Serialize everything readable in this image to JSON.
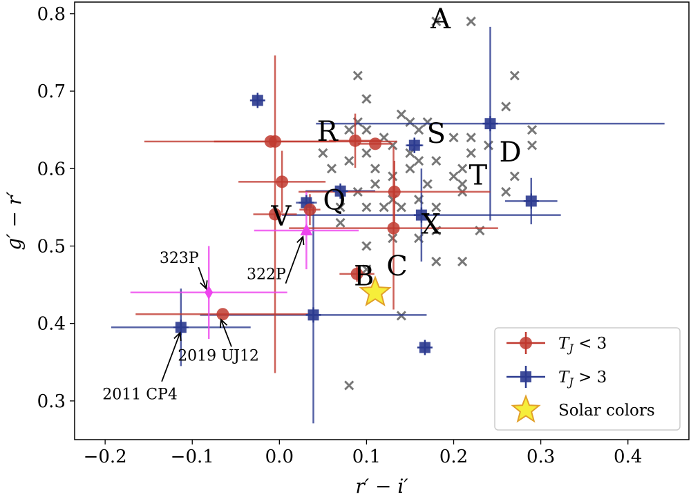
{
  "chart_data": {
    "type": "scatter",
    "xlabel": "r′ − i′",
    "ylabel": "g′ − r′",
    "xlim": [
      -0.235,
      0.47
    ],
    "ylim": [
      0.25,
      0.815
    ],
    "xticks": [
      -0.2,
      -0.1,
      0.0,
      0.1,
      0.2,
      0.3,
      0.4
    ],
    "xtick_labels": [
      "−0.2",
      "−0.1",
      "0.0",
      "0.1",
      "0.2",
      "0.3",
      "0.4"
    ],
    "yticks": [
      0.3,
      0.4,
      0.5,
      0.6,
      0.7,
      0.8
    ],
    "ytick_labels": [
      "0.3",
      "0.4",
      "0.5",
      "0.6",
      "0.7",
      "0.8"
    ],
    "grid": false,
    "legend_position": "bottom-right",
    "series": [
      {
        "name": "T_J < 3",
        "label_main": "T",
        "label_sub": "J",
        "label_rel": " < 3",
        "marker": "circle",
        "color": "#c0392f",
        "points": [
          {
            "x": -0.01,
            "y": 0.635,
            "xerr": 0.145,
            "yerr": 0.0
          },
          {
            "x": -0.005,
            "y": 0.635,
            "xerr": 0.07,
            "yerr": 0.0
          },
          {
            "x": 0.003,
            "y": 0.583,
            "xerr": 0.05,
            "yerr": 0.04
          },
          {
            "x": -0.005,
            "y": 0.541,
            "xerr": 0.025,
            "yerr": 0.205
          },
          {
            "x": 0.035,
            "y": 0.547,
            "xerr": 0.012,
            "yerr": 0.02
          },
          {
            "x": 0.087,
            "y": 0.636,
            "xerr": 0.03,
            "yerr": 0.035
          },
          {
            "x": 0.11,
            "y": 0.632,
            "xerr": 0.02,
            "yerr": 0.0
          },
          {
            "x": 0.132,
            "y": 0.57,
            "xerr": 0.11,
            "yerr": 0.04
          },
          {
            "x": 0.131,
            "y": 0.523,
            "xerr": 0.12,
            "yerr": 0.105
          },
          {
            "x": 0.089,
            "y": 0.464,
            "xerr": 0.02,
            "yerr": 0.01
          },
          {
            "x": -0.065,
            "y": 0.412,
            "xerr": 0.1,
            "yerr": 0.0
          }
        ]
      },
      {
        "name": "T_J > 3",
        "label_main": "T",
        "label_sub": "J",
        "label_rel": " > 3",
        "marker": "square",
        "color": "#2b3a8f",
        "points": [
          {
            "x": -0.025,
            "y": 0.688,
            "xerr": 0.0,
            "yerr": 0.0
          },
          {
            "x": 0.242,
            "y": 0.658,
            "xerr": 0.2,
            "yerr": 0.125
          },
          {
            "x": 0.155,
            "y": 0.63,
            "xerr": 0.01,
            "yerr": 0.01
          },
          {
            "x": 0.07,
            "y": 0.571,
            "xerr": 0.04,
            "yerr": 0.0
          },
          {
            "x": 0.289,
            "y": 0.558,
            "xerr": 0.03,
            "yerr": 0.03
          },
          {
            "x": 0.163,
            "y": 0.54,
            "xerr": 0.16,
            "yerr": 0.06
          },
          {
            "x": 0.031,
            "y": 0.556,
            "xerr": 0.012,
            "yerr": 0.0
          },
          {
            "x": 0.039,
            "y": 0.411,
            "xerr": 0.13,
            "yerr": 0.14
          },
          {
            "x": -0.113,
            "y": 0.395,
            "xerr": 0.08,
            "yerr": 0.05
          },
          {
            "x": 0.167,
            "y": 0.369,
            "xerr": 0.0,
            "yerr": 0.0
          }
        ]
      },
      {
        "name": "Solar colors",
        "marker": "star",
        "color": "#f6ee3a",
        "stroke": "#e1a02a",
        "points": [
          {
            "x": 0.11,
            "y": 0.44
          }
        ]
      }
    ],
    "magenta_points": [
      {
        "label": "323P",
        "x": -0.081,
        "y": 0.44,
        "xerr": 0.09,
        "yerr": 0.06,
        "marker": "diamond",
        "color": "#ee44ee",
        "text_x": -0.115,
        "text_y": 0.478,
        "tip_x": -0.084,
        "tip_y": 0.445
      },
      {
        "label": "322P",
        "x": 0.031,
        "y": 0.52,
        "xerr": 0.06,
        "yerr": 0.05,
        "marker": "triangle",
        "color": "#ee44ee",
        "text_x": -0.015,
        "text_y": 0.457,
        "tip_x": 0.027,
        "tip_y": 0.512
      }
    ],
    "annotations": [
      {
        "label": "2011 CP4",
        "text_x": -0.16,
        "text_y": 0.302,
        "tip_x": -0.114,
        "tip_y": 0.388,
        "from_x": -0.135,
        "from_y": 0.325
      },
      {
        "label": "2019 UJ12",
        "text_x": -0.07,
        "text_y": 0.352,
        "tip_x": -0.067,
        "tip_y": 0.405,
        "from_x": -0.055,
        "from_y": 0.37
      }
    ],
    "taxonomy_labels": [
      {
        "label": "A",
        "x": 0.185,
        "y": 0.79
      },
      {
        "label": "R",
        "x": 0.055,
        "y": 0.645
      },
      {
        "label": "S",
        "x": 0.18,
        "y": 0.642
      },
      {
        "label": "D",
        "x": 0.265,
        "y": 0.618
      },
      {
        "label": "T",
        "x": 0.228,
        "y": 0.588
      },
      {
        "label": "Q",
        "x": 0.063,
        "y": 0.556
      },
      {
        "label": "V",
        "x": 0.002,
        "y": 0.535
      },
      {
        "label": "X",
        "x": 0.174,
        "y": 0.525
      },
      {
        "label": "C",
        "x": 0.135,
        "y": 0.471
      },
      {
        "label": "B",
        "x": 0.097,
        "y": 0.458
      }
    ],
    "reference_points": [
      {
        "x": 0.22,
        "y": 0.79
      },
      {
        "x": 0.18,
        "y": 0.79
      },
      {
        "x": 0.27,
        "y": 0.72
      },
      {
        "x": 0.09,
        "y": 0.72
      },
      {
        "x": 0.1,
        "y": 0.69
      },
      {
        "x": 0.26,
        "y": 0.68
      },
      {
        "x": 0.14,
        "y": 0.67
      },
      {
        "x": 0.15,
        "y": 0.66
      },
      {
        "x": 0.17,
        "y": 0.66
      },
      {
        "x": 0.09,
        "y": 0.66
      },
      {
        "x": 0.29,
        "y": 0.65
      },
      {
        "x": 0.08,
        "y": 0.65
      },
      {
        "x": 0.1,
        "y": 0.65
      },
      {
        "x": 0.16,
        "y": 0.65
      },
      {
        "x": 0.2,
        "y": 0.64
      },
      {
        "x": 0.22,
        "y": 0.64
      },
      {
        "x": 0.12,
        "y": 0.64
      },
      {
        "x": 0.13,
        "y": 0.63
      },
      {
        "x": 0.24,
        "y": 0.63
      },
      {
        "x": 0.29,
        "y": 0.63
      },
      {
        "x": 0.22,
        "y": 0.62
      },
      {
        "x": 0.15,
        "y": 0.62
      },
      {
        "x": 0.1,
        "y": 0.62
      },
      {
        "x": 0.05,
        "y": 0.62
      },
      {
        "x": 0.08,
        "y": 0.61
      },
      {
        "x": 0.18,
        "y": 0.61
      },
      {
        "x": 0.16,
        "y": 0.61
      },
      {
        "x": 0.06,
        "y": 0.6
      },
      {
        "x": 0.21,
        "y": 0.6
      },
      {
        "x": 0.15,
        "y": 0.6
      },
      {
        "x": 0.11,
        "y": 0.6
      },
      {
        "x": 0.13,
        "y": 0.59
      },
      {
        "x": 0.27,
        "y": 0.59
      },
      {
        "x": 0.2,
        "y": 0.59
      },
      {
        "x": 0.21,
        "y": 0.58
      },
      {
        "x": 0.17,
        "y": 0.58
      },
      {
        "x": 0.11,
        "y": 0.58
      },
      {
        "x": 0.09,
        "y": 0.57
      },
      {
        "x": 0.26,
        "y": 0.57
      },
      {
        "x": 0.21,
        "y": 0.57
      },
      {
        "x": 0.13,
        "y": 0.56
      },
      {
        "x": 0.16,
        "y": 0.56
      },
      {
        "x": 0.07,
        "y": 0.55
      },
      {
        "x": 0.1,
        "y": 0.55
      },
      {
        "x": 0.12,
        "y": 0.55
      },
      {
        "x": 0.14,
        "y": 0.55
      },
      {
        "x": 0.18,
        "y": 0.55
      },
      {
        "x": 0.18,
        "y": 0.52
      },
      {
        "x": 0.23,
        "y": 0.52
      },
      {
        "x": 0.07,
        "y": 0.53
      },
      {
        "x": 0.13,
        "y": 0.51
      },
      {
        "x": 0.16,
        "y": 0.51
      },
      {
        "x": 0.1,
        "y": 0.5
      },
      {
        "x": 0.1,
        "y": 0.47
      },
      {
        "x": 0.18,
        "y": 0.48
      },
      {
        "x": 0.21,
        "y": 0.48
      },
      {
        "x": 0.14,
        "y": 0.41
      },
      {
        "x": 0.08,
        "y": 0.32
      }
    ]
  }
}
